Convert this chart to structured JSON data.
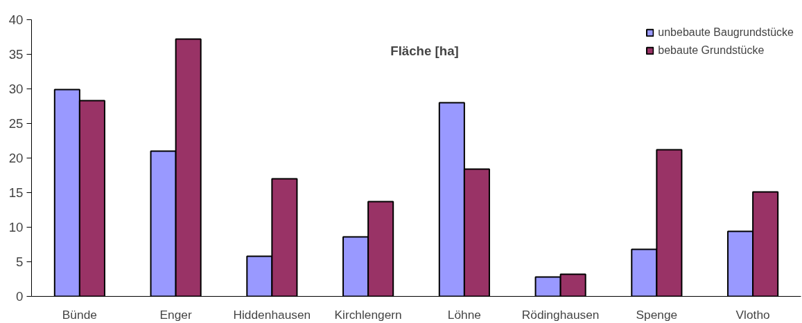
{
  "chart_data": {
    "type": "bar",
    "title": "Fläche [ha]",
    "categories": [
      "Bünde",
      "Enger",
      "Hiddenhausen",
      "Kirchlengern",
      "Löhne",
      "Rödinghausen",
      "Spenge",
      "Vlotho"
    ],
    "series": [
      {
        "name": "unbebaute Baugrundstücke",
        "color": "#9999ff",
        "values": [
          29.9,
          21.0,
          5.8,
          8.6,
          28.0,
          2.8,
          6.8,
          9.4
        ]
      },
      {
        "name": "bebaute Grundstücke",
        "color": "#993366",
        "values": [
          28.3,
          37.2,
          17.0,
          13.7,
          18.4,
          3.2,
          21.2,
          15.1
        ]
      }
    ],
    "ylim": [
      0,
      40
    ],
    "yticks": [
      0,
      5,
      10,
      15,
      20,
      25,
      30,
      35,
      40
    ],
    "grid": false,
    "legend": "top right"
  }
}
